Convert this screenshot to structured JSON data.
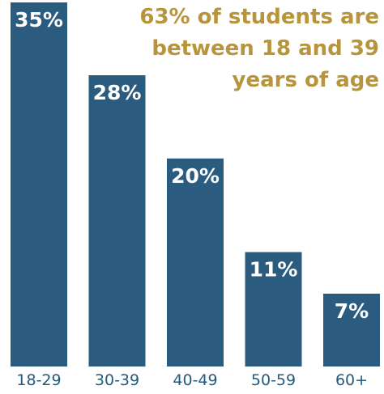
{
  "colors": {
    "bar": "#2b5c80",
    "bar_label": "#ffffff",
    "tick_label": "#245a7e",
    "headline": "#b8953c"
  },
  "headline": {
    "line1": "63% of students are",
    "line2": "between 18 and 39",
    "line3": "years of age"
  },
  "chart_data": {
    "type": "bar",
    "categories": [
      "18-29",
      "30-39",
      "40-49",
      "50-59",
      "60+"
    ],
    "values": [
      35,
      28,
      20,
      11,
      7
    ],
    "value_labels": [
      "35%",
      "28%",
      "20%",
      "11%",
      "7%"
    ],
    "title": "",
    "xlabel": "",
    "ylabel": "",
    "ylim": [
      0,
      35
    ],
    "grid": false,
    "legend": "none"
  }
}
